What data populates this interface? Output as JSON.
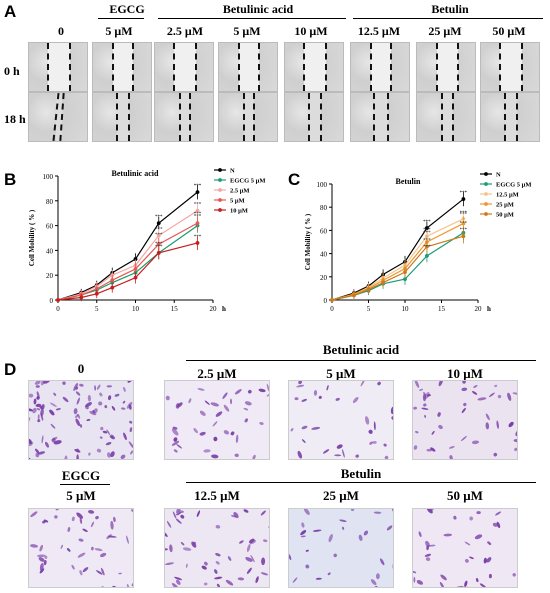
{
  "panel_a": {
    "letter": "A",
    "groups": [
      "EGCG",
      "Betulinic acid",
      "Betulin"
    ],
    "columns": [
      "0",
      "5 μM",
      "2.5 μM",
      "5 μM",
      "10 μM",
      "12.5 μM",
      "25 μM",
      "50 μM"
    ],
    "rows": [
      "0 h",
      "18 h"
    ]
  },
  "chart_data": [
    {
      "type": "line",
      "panel": "B",
      "title": "Betulinic acid",
      "xlabel": "h",
      "ylabel": "Cell Mobility ( % )",
      "xlim": [
        0,
        20
      ],
      "ylim": [
        0,
        100
      ],
      "x_ticks": [
        "0",
        "5",
        "10",
        "15",
        "20"
      ],
      "y_ticks": [
        "0",
        "20",
        "40",
        "60",
        "80",
        "100"
      ],
      "x": [
        0,
        3,
        5,
        7,
        10,
        13,
        18
      ],
      "legend_position": "top-right",
      "significance": "***",
      "series": [
        {
          "name": "N",
          "color": "#000000",
          "values": [
            0,
            6,
            12,
            22,
            33,
            62,
            87
          ]
        },
        {
          "name": "EGCG 5 μM",
          "color": "#1a9c73",
          "values": [
            0,
            4,
            8,
            14,
            22,
            38,
            60
          ]
        },
        {
          "name": "2.5 μM",
          "color": "#f3a6a2",
          "values": [
            0,
            5,
            11,
            20,
            28,
            52,
            72
          ]
        },
        {
          "name": "5 μM",
          "color": "#e8574f",
          "values": [
            0,
            4,
            9,
            16,
            25,
            45,
            62
          ]
        },
        {
          "name": "10 μM",
          "color": "#c81d1d",
          "values": [
            0,
            2,
            5,
            10,
            18,
            38,
            46
          ]
        }
      ]
    },
    {
      "type": "line",
      "panel": "C",
      "title": "Betulin",
      "xlabel": "h",
      "ylabel": "Cell Mobility ( % )",
      "xlim": [
        0,
        20
      ],
      "ylim": [
        0,
        100
      ],
      "x_ticks": [
        "0",
        "5",
        "10",
        "15",
        "20"
      ],
      "y_ticks": [
        "0",
        "20",
        "40",
        "60",
        "80",
        "100"
      ],
      "x": [
        0,
        3,
        5,
        7,
        10,
        13,
        18
      ],
      "legend_position": "top-right",
      "significance": "***",
      "series": [
        {
          "name": "N",
          "color": "#000000",
          "values": [
            0,
            6,
            12,
            22,
            33,
            62,
            87
          ]
        },
        {
          "name": "EGCG 5 μM",
          "color": "#1a9c73",
          "values": [
            0,
            4,
            8,
            14,
            18,
            38,
            58
          ]
        },
        {
          "name": "12.5 μM",
          "color": "#f6c48a",
          "values": [
            0,
            5,
            11,
            19,
            30,
            55,
            70
          ]
        },
        {
          "name": "25 μM",
          "color": "#f0962e",
          "values": [
            0,
            5,
            10,
            17,
            27,
            50,
            66
          ]
        },
        {
          "name": "50 μM",
          "color": "#cc7a1c",
          "values": [
            0,
            4,
            9,
            15,
            24,
            46,
            55
          ]
        }
      ]
    }
  ],
  "panel_d": {
    "letter": "D",
    "group_betulinic": "Betulinic acid",
    "group_egcg": "EGCG",
    "group_betulin": "Betulin",
    "top_labels": [
      "0",
      "2.5 μM",
      "5 μM",
      "10 μM"
    ],
    "bottom_labels": [
      "5 μM",
      "12.5 μM",
      "25 μM",
      "50 μM"
    ]
  },
  "colors": {
    "wound_bg": "#d2d2d2",
    "stain": "#7a3fa8",
    "stain_bg_light": "#ece8f3",
    "stain_bg_blue": "#dfe3f2"
  }
}
